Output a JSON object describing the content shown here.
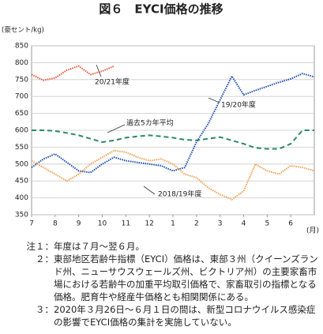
{
  "chart_data": {
    "type": "line",
    "title": "図６　EYCI価格の推移",
    "y_label": "(豪セント/kg)",
    "x_label": "(月)",
    "x": [
      0,
      0.5,
      1,
      1.5,
      2,
      2.5,
      3,
      3.5,
      4,
      4.5,
      5,
      5.5,
      6,
      6.5,
      7,
      7.5,
      8,
      8.5,
      9,
      9.5,
      10,
      10.5,
      11,
      11.5,
      12
    ],
    "xlim": [
      0,
      12
    ],
    "xticks": [
      {
        "value": 0,
        "label": "7"
      },
      {
        "value": 1,
        "label": "8"
      },
      {
        "value": 2,
        "label": "9"
      },
      {
        "value": 3,
        "label": "10"
      },
      {
        "value": 4,
        "label": "11"
      },
      {
        "value": 5,
        "label": "12"
      },
      {
        "value": 6,
        "label": "1"
      },
      {
        "value": 7,
        "label": "2"
      },
      {
        "value": 8,
        "label": "3"
      },
      {
        "value": 9,
        "label": "4"
      },
      {
        "value": 10,
        "label": "5"
      },
      {
        "value": 11,
        "label": "6"
      }
    ],
    "ylim": [
      350,
      850
    ],
    "yticks": [
      350,
      400,
      450,
      500,
      550,
      600,
      650,
      700,
      750,
      800,
      850
    ],
    "grid": true,
    "series": [
      {
        "name": "20/21年度",
        "color": "#e8553a",
        "style": "dotted",
        "values": [
          765,
          748,
          755,
          778,
          790,
          765,
          775,
          790,
          null,
          null,
          null,
          null,
          null,
          null,
          null,
          null,
          null,
          null,
          null,
          null,
          null,
          null,
          null,
          null,
          null
        ]
      },
      {
        "name": "19/20年度",
        "color": "#1f4fb0",
        "style": "dotted",
        "values": [
          490,
          515,
          530,
          505,
          480,
          475,
          500,
          520,
          510,
          505,
          500,
          495,
          480,
          490,
          565,
          620,
          690,
          760,
          705,
          718,
          730,
          742,
          752,
          768,
          758
        ]
      },
      {
        "name": "過去5カ年平均",
        "color": "#2a8a6a",
        "style": "dashed",
        "values": [
          600,
          600,
          598,
          592,
          585,
          575,
          565,
          570,
          578,
          582,
          585,
          582,
          578,
          572,
          570,
          575,
          580,
          570,
          560,
          548,
          545,
          545,
          560,
          600,
          600
        ]
      },
      {
        "name": "2018/19年度",
        "color": "#f0a050",
        "style": "dotted",
        "values": [
          510,
          490,
          470,
          450,
          470,
          500,
          520,
          540,
          535,
          520,
          510,
          515,
          500,
          470,
          460,
          430,
          410,
          395,
          420,
          500,
          480,
          470,
          495,
          490,
          480
        ]
      }
    ],
    "notes": [
      {
        "label": "注１：",
        "text": "年度は７月～翌６月。"
      },
      {
        "label": "２：",
        "text": "東部地区若齢牛指標（EYCI）価格は、東部３州（クイーンズランド州、ニューサウスウェールズ州、ビクトリア州）の主要家畜市場における若齢牛の加重平均取引価格で、家畜取引の指標となる価格。肥育牛や経産牛価格とも相関関係にある。"
      },
      {
        "label": "３：",
        "text": "2020年３月26日～６月１日の間は、新型コロナウイルス感染症の影響でEYCI価格の集計を実施していない。"
      }
    ]
  }
}
